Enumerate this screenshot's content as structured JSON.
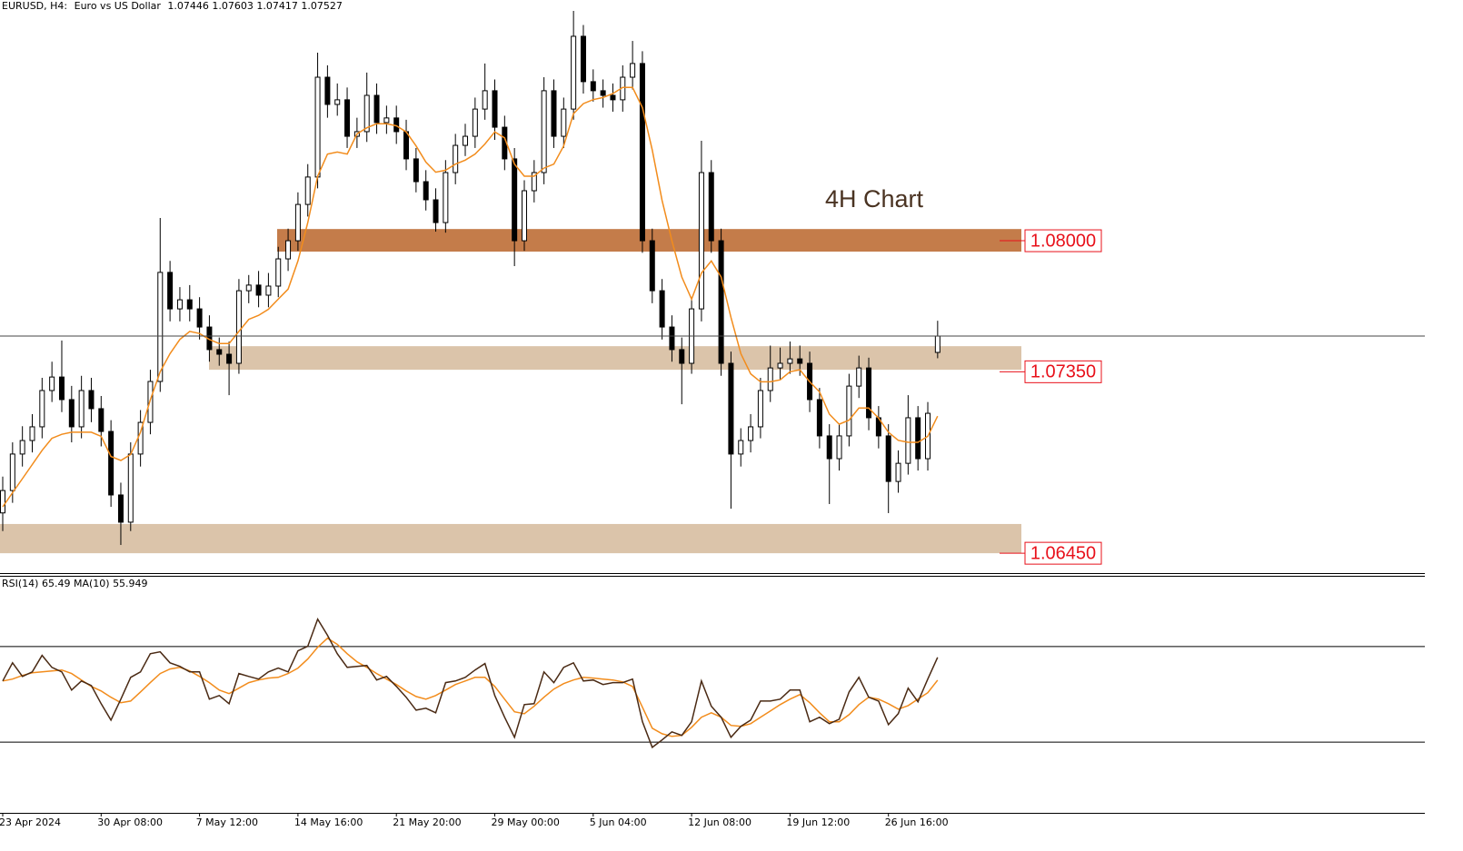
{
  "header": {
    "symbol": "EURUSD, H4:",
    "description": "Euro vs US Dollar"
  },
  "chart_data": [
    {
      "type": "candlestick",
      "annotation": "4H Chart",
      "categories": [
        "23 Apr 2024",
        null,
        null,
        null,
        null,
        null,
        null,
        null,
        null,
        null,
        "30 Apr 08:00",
        null,
        null,
        null,
        null,
        null,
        null,
        null,
        null,
        null,
        "7 May 12:00",
        null,
        null,
        null,
        null,
        null,
        null,
        null,
        null,
        null,
        "14 May 16:00",
        null,
        null,
        null,
        null,
        null,
        null,
        null,
        null,
        null,
        "21 May 20:00",
        null,
        null,
        null,
        null,
        null,
        null,
        null,
        null,
        null,
        "29 May 00:00",
        null,
        null,
        null,
        null,
        null,
        null,
        null,
        null,
        null,
        "5 Jun 04:00",
        null,
        null,
        null,
        null,
        null,
        null,
        null,
        null,
        null,
        "12 Jun 08:00",
        null,
        null,
        null,
        null,
        null,
        null,
        null,
        null,
        null,
        "19 Jun 12:00",
        null,
        null,
        null,
        null,
        null,
        null,
        null,
        null,
        null,
        "26 Jun 16:00",
        null,
        null,
        null,
        null,
        null
      ],
      "candles": [
        [
          1.0665,
          1.0683,
          1.0656,
          1.06761
        ],
        [
          1.06761,
          1.07,
          1.067,
          1.06942
        ],
        [
          1.06942,
          1.0708,
          1.0688,
          1.07009
        ],
        [
          1.07009,
          1.0714,
          1.0695,
          1.07077
        ],
        [
          1.07077,
          1.0732,
          1.0702,
          1.07257
        ],
        [
          1.07257,
          1.074,
          1.072,
          1.07324
        ],
        [
          1.07324,
          1.07505,
          1.0715,
          1.07212
        ],
        [
          1.07212,
          1.0728,
          1.07,
          1.07077
        ],
        [
          1.07077,
          1.0733,
          1.0702,
          1.07257
        ],
        [
          1.07257,
          1.0732,
          1.071,
          1.07167
        ],
        [
          1.07167,
          1.0723,
          1.0698,
          1.07054
        ],
        [
          1.07054,
          1.0711,
          1.0668,
          1.06739
        ],
        [
          1.06739,
          1.068,
          1.06491,
          1.06604
        ],
        [
          1.06604,
          1.07,
          1.0656,
          1.06942
        ],
        [
          1.06942,
          1.0716,
          1.0688,
          1.07099
        ],
        [
          1.07099,
          1.0736,
          1.0704,
          1.07302
        ],
        [
          1.07302,
          1.08113,
          1.0725,
          1.07843
        ],
        [
          1.07843,
          1.079,
          1.076,
          1.07662
        ],
        [
          1.07662,
          1.0777,
          1.076,
          1.07707
        ],
        [
          1.07707,
          1.0778,
          1.076,
          1.07662
        ],
        [
          1.07662,
          1.0772,
          1.0751,
          1.07572
        ],
        [
          1.07572,
          1.0763,
          1.074,
          1.0746
        ],
        [
          1.0746,
          1.0752,
          1.0738,
          1.07437
        ],
        [
          1.07437,
          1.075,
          1.07234,
          1.07392
        ],
        [
          1.07392,
          1.0781,
          1.0734,
          1.07752
        ],
        [
          1.07752,
          1.0783,
          1.0769,
          1.0778
        ],
        [
          1.0778,
          1.0785,
          1.0767,
          1.0773
        ],
        [
          1.0773,
          1.0784,
          1.0767,
          1.07775
        ],
        [
          1.07775,
          1.0797,
          1.0772,
          1.0791
        ],
        [
          1.0791,
          1.0806,
          1.0785,
          1.08
        ],
        [
          1.08,
          1.0824,
          1.0795,
          1.0818
        ],
        [
          1.0818,
          1.0838,
          1.0812,
          1.08316
        ],
        [
          1.08316,
          1.08933,
          1.0826,
          1.08811
        ],
        [
          1.08811,
          1.0887,
          1.0861,
          1.08676
        ],
        [
          1.08676,
          1.0878,
          1.0862,
          1.08699
        ],
        [
          1.08699,
          1.0876,
          1.0846,
          1.08518
        ],
        [
          1.08518,
          1.0861,
          1.0846,
          1.08541
        ],
        [
          1.08541,
          1.08834,
          1.0849,
          1.08721
        ],
        [
          1.08721,
          1.0878,
          1.0853,
          1.08586
        ],
        [
          1.08586,
          1.0867,
          1.0853,
          1.08609
        ],
        [
          1.08609,
          1.0867,
          1.0848,
          1.08541
        ],
        [
          1.08541,
          1.086,
          1.0835,
          1.08406
        ],
        [
          1.08406,
          1.0846,
          1.0824,
          1.08293
        ],
        [
          1.08293,
          1.0835,
          1.0815,
          1.08203
        ],
        [
          1.08203,
          1.0826,
          1.08045,
          1.0809
        ],
        [
          1.0809,
          1.084,
          1.0804,
          1.08338
        ],
        [
          1.08338,
          1.0853,
          1.0828,
          1.08473
        ],
        [
          1.08473,
          1.0858,
          1.0842,
          1.08518
        ],
        [
          1.08518,
          1.0871,
          1.0846,
          1.08653
        ],
        [
          1.08653,
          1.08879,
          1.086,
          1.08744
        ],
        [
          1.08744,
          1.088,
          1.085,
          1.08563
        ],
        [
          1.08563,
          1.0862,
          1.0835,
          1.08406
        ],
        [
          1.08406,
          1.0846,
          1.07874,
          1.08
        ],
        [
          1.08,
          1.083,
          1.0795,
          1.08248
        ],
        [
          1.08248,
          1.084,
          1.0819,
          1.08338
        ],
        [
          1.08338,
          1.08811,
          1.0828,
          1.08744
        ],
        [
          1.08744,
          1.088,
          1.0846,
          1.08518
        ],
        [
          1.08518,
          1.0871,
          1.0846,
          1.08653
        ],
        [
          1.08653,
          1.0914,
          1.086,
          1.09014
        ],
        [
          1.09014,
          1.0907,
          1.0873,
          1.08789
        ],
        [
          1.08789,
          1.0885,
          1.0869,
          1.08744
        ],
        [
          1.08744,
          1.088,
          1.0866,
          1.08721
        ],
        [
          1.08721,
          1.0878,
          1.0864,
          1.08699
        ],
        [
          1.08699,
          1.0887,
          1.0864,
          1.08811
        ],
        [
          1.08811,
          1.08991,
          1.0875,
          1.08879
        ],
        [
          1.08879,
          1.0894,
          1.0794,
          1.08
        ],
        [
          1.08,
          1.0806,
          1.0769,
          1.07752
        ],
        [
          1.07752,
          1.0781,
          1.0751,
          1.07572
        ],
        [
          1.07572,
          1.0763,
          1.074,
          1.0746
        ],
        [
          1.0746,
          1.0752,
          1.07189,
          1.07392
        ],
        [
          1.07392,
          1.0772,
          1.0734,
          1.07662
        ],
        [
          1.07662,
          1.08496,
          1.076,
          1.08338
        ],
        [
          1.08338,
          1.084,
          1.0794,
          1.08
        ],
        [
          1.08,
          1.0806,
          1.0733,
          1.07392
        ],
        [
          1.07392,
          1.0745,
          1.06671,
          1.06942
        ],
        [
          1.06942,
          1.0707,
          1.0688,
          1.07009
        ],
        [
          1.07009,
          1.0714,
          1.0695,
          1.07077
        ],
        [
          1.07077,
          1.0732,
          1.0702,
          1.07257
        ],
        [
          1.07257,
          1.0748,
          1.072,
          1.07369
        ],
        [
          1.07369,
          1.0747,
          1.0731,
          1.07392
        ],
        [
          1.07392,
          1.075,
          1.0734,
          1.07414
        ],
        [
          1.07414,
          1.0748,
          1.0733,
          1.07392
        ],
        [
          1.07392,
          1.0745,
          1.0715,
          1.07212
        ],
        [
          1.07212,
          1.0727,
          1.0697,
          1.07032
        ],
        [
          1.07032,
          1.0709,
          1.06694,
          1.06919
        ],
        [
          1.06919,
          1.0709,
          1.0686,
          1.07032
        ],
        [
          1.07032,
          1.0734,
          1.0698,
          1.07279
        ],
        [
          1.07279,
          1.0743,
          1.0722,
          1.07369
        ],
        [
          1.07369,
          1.0742,
          1.0706,
          1.07122
        ],
        [
          1.07122,
          1.0718,
          1.0697,
          1.07032
        ],
        [
          1.07032,
          1.0709,
          1.06649,
          1.06806
        ],
        [
          1.06806,
          1.0696,
          1.0675,
          1.06896
        ],
        [
          1.06896,
          1.07234,
          1.0684,
          1.07122
        ],
        [
          1.07122,
          1.0718,
          1.0686,
          1.06919
        ],
        [
          1.06919,
          1.072,
          1.0686,
          1.07144
        ],
        [
          1.07446,
          1.07603,
          1.07417,
          1.07527
        ]
      ],
      "ma": [
        1.0668,
        1.0675,
        1.0682,
        1.0689,
        1.0696,
        1.0702,
        1.0704,
        1.0705,
        1.0705,
        1.0705,
        1.0703,
        1.0693,
        1.0691,
        1.0694,
        1.0705,
        1.0721,
        1.0735,
        1.0744,
        1.0751,
        1.0755,
        1.0754,
        1.0751,
        1.0749,
        1.0749,
        1.0755,
        1.0761,
        1.0763,
        1.0766,
        1.0771,
        1.0776,
        1.079,
        1.0809,
        1.0832,
        1.0843,
        1.0844,
        1.0843,
        1.0853,
        1.0856,
        1.0858,
        1.0858,
        1.0857,
        1.0854,
        1.0847,
        1.0839,
        1.0834,
        1.0835,
        1.0838,
        1.084,
        1.0843,
        1.0848,
        1.0854,
        1.0851,
        1.0838,
        1.0832,
        1.0832,
        1.0836,
        1.0838,
        1.0847,
        1.0863,
        1.0868,
        1.087,
        1.0871,
        1.0873,
        1.0876,
        1.0876,
        1.0866,
        1.0845,
        1.082,
        1.08,
        1.0782,
        1.0771,
        1.0784,
        1.079,
        1.0782,
        1.0762,
        1.0744,
        1.0734,
        1.073,
        1.073,
        1.0731,
        1.0735,
        1.0736,
        1.073,
        1.0725,
        1.0714,
        1.0709,
        1.0711,
        1.0717,
        1.0717,
        1.0712,
        1.0705,
        1.0701,
        1.07,
        1.07,
        1.0703,
        1.0713
      ],
      "ma_color": "#f28c1c",
      "bull_color": "#ffffff",
      "bear_color": "#000000",
      "ylim": [
        1.06347,
        1.09194
      ],
      "levels": [
        {
          "value": 1.08,
          "label": "1.08000",
          "zone": [
            1.07946,
            1.08058
          ],
          "color": "#c47c4a"
        },
        {
          "value": 1.0735,
          "label": "1.07350",
          "zone": [
            1.0736,
            1.07477
          ],
          "color": "#dbc4aa"
        },
        {
          "value": 1.0645,
          "label": "1.06450",
          "zone": [
            1.0645,
            1.06595
          ],
          "color": "#dbc4aa"
        }
      ],
      "level_label_color": "#e8101a"
    },
    {
      "type": "line",
      "title": "RSI(14)",
      "ma_title": "MA(10)",
      "values": [
        55.6,
        63.2,
        57.5,
        59.4,
        66.3,
        61.3,
        59.4,
        51.8,
        55.6,
        53.7,
        46.1,
        39.2,
        48.0,
        57.1,
        59.4,
        67.0,
        67.8,
        63.2,
        61.7,
        59.4,
        59.4,
        48.0,
        49.5,
        46.1,
        58.7,
        57.5,
        56.4,
        59.4,
        61.0,
        59.4,
        68.2,
        70.1,
        81.5,
        74.7,
        67.0,
        61.3,
        61.7,
        62.1,
        56.0,
        57.5,
        53.3,
        48.8,
        43.4,
        44.2,
        42.3,
        54.9,
        55.6,
        57.1,
        60.2,
        62.9,
        49.5,
        40.4,
        32.0,
        45.7,
        46.1,
        59.4,
        54.9,
        61.3,
        63.2,
        55.6,
        56.0,
        54.1,
        54.9,
        54.9,
        56.4,
        38.5,
        27.8,
        30.9,
        34.3,
        32.8,
        38.5,
        55.6,
        45.0,
        40.4,
        32.0,
        36.6,
        39.2,
        47.2,
        47.2,
        48.0,
        51.8,
        51.8,
        38.5,
        40.4,
        37.7,
        39.6,
        51.0,
        57.1,
        48.8,
        47.2,
        37.3,
        41.9,
        52.6,
        46.9,
        56.4,
        65.49
      ],
      "ma": [
        55.6,
        56.4,
        57.9,
        59.0,
        59.4,
        59.8,
        60.2,
        58.7,
        56.0,
        53.3,
        51.4,
        48.8,
        46.5,
        47.2,
        51.0,
        54.9,
        58.7,
        60.6,
        61.3,
        59.8,
        57.5,
        54.9,
        51.8,
        50.3,
        52.6,
        54.9,
        56.0,
        56.8,
        57.1,
        58.7,
        61.0,
        64.8,
        69.7,
        73.5,
        70.9,
        67.0,
        63.6,
        61.3,
        58.7,
        56.4,
        54.1,
        51.4,
        49.1,
        48.0,
        49.5,
        51.8,
        54.1,
        55.6,
        57.1,
        57.1,
        53.3,
        48.0,
        42.7,
        41.9,
        45.0,
        48.8,
        52.2,
        54.5,
        56.0,
        57.1,
        56.8,
        56.4,
        56.0,
        55.2,
        53.3,
        44.6,
        35.8,
        33.5,
        32.4,
        32.8,
        36.2,
        40.4,
        42.3,
        40.4,
        37.0,
        36.6,
        37.7,
        40.4,
        43.0,
        45.7,
        48.0,
        49.9,
        46.5,
        42.3,
        38.5,
        38.5,
        41.5,
        45.7,
        48.8,
        48.0,
        46.1,
        43.8,
        45.3,
        48.0,
        50.7,
        55.949
      ],
      "color": "#4a2a14",
      "ma_color": "#f28c1c",
      "ylim": [
        0,
        100
      ],
      "levels": [
        70,
        30
      ]
    }
  ]
}
